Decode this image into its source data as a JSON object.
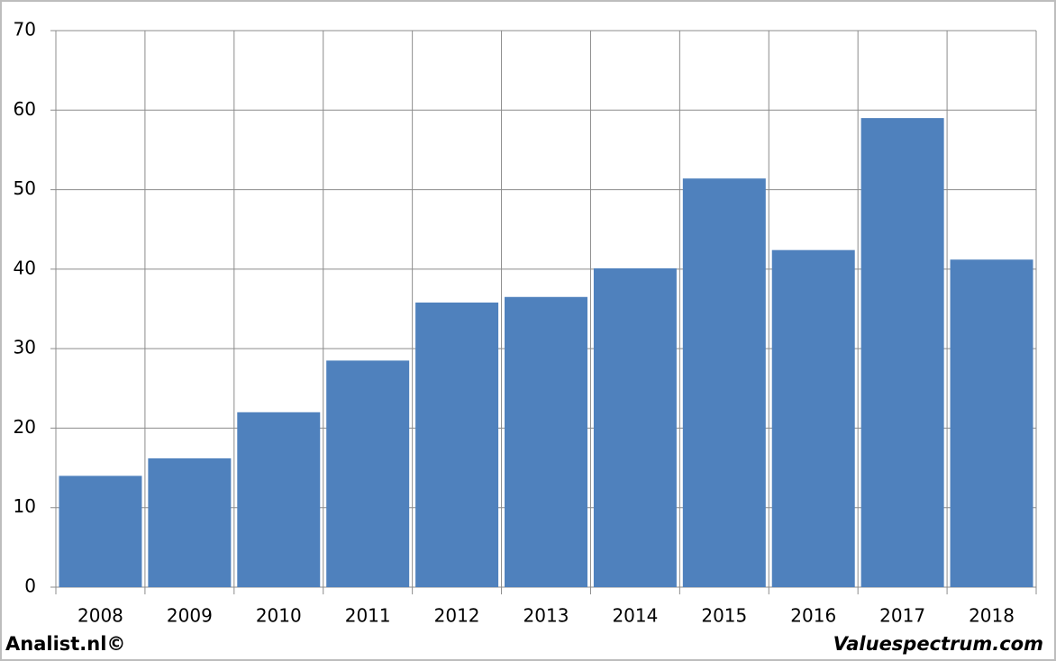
{
  "chart_data": {
    "type": "bar",
    "categories": [
      "2008",
      "2009",
      "2010",
      "2011",
      "2012",
      "2013",
      "2014",
      "2015",
      "2016",
      "2017",
      "2018"
    ],
    "values": [
      14.0,
      16.2,
      22.0,
      28.5,
      35.8,
      36.5,
      40.1,
      51.4,
      42.4,
      59.0,
      41.2
    ],
    "color": "#4f81bd",
    "ylim": [
      0,
      70
    ],
    "yticks": [
      0,
      10,
      20,
      30,
      40,
      50,
      60,
      70
    ],
    "grid": true,
    "credits": [
      "Analist.nl©",
      "Valuespectrum.com"
    ]
  }
}
